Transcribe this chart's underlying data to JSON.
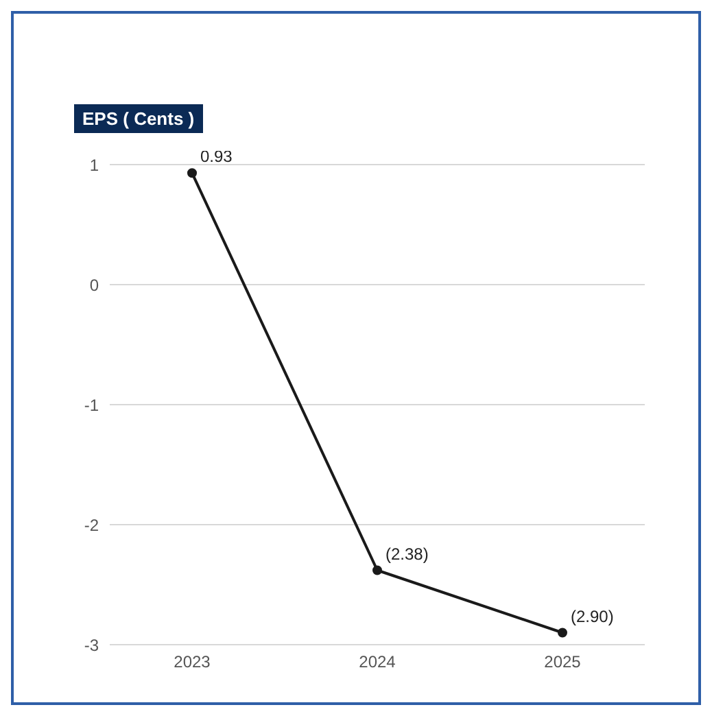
{
  "chart_data": {
    "type": "line",
    "title": "EPS ( Cents )",
    "categories": [
      "2023",
      "2024",
      "2025"
    ],
    "series": [
      {
        "color": "#1a1a1a",
        "values": [
          0.93,
          -2.38,
          -2.9
        ],
        "value_labels": [
          "0.93",
          "(2.38)",
          "(2.90)"
        ]
      }
    ],
    "ylim": [
      -3,
      1
    ],
    "yticks": [
      -3,
      -2,
      -1,
      0,
      1
    ],
    "grid": "y",
    "marker": "circle",
    "line_style": "solid"
  }
}
